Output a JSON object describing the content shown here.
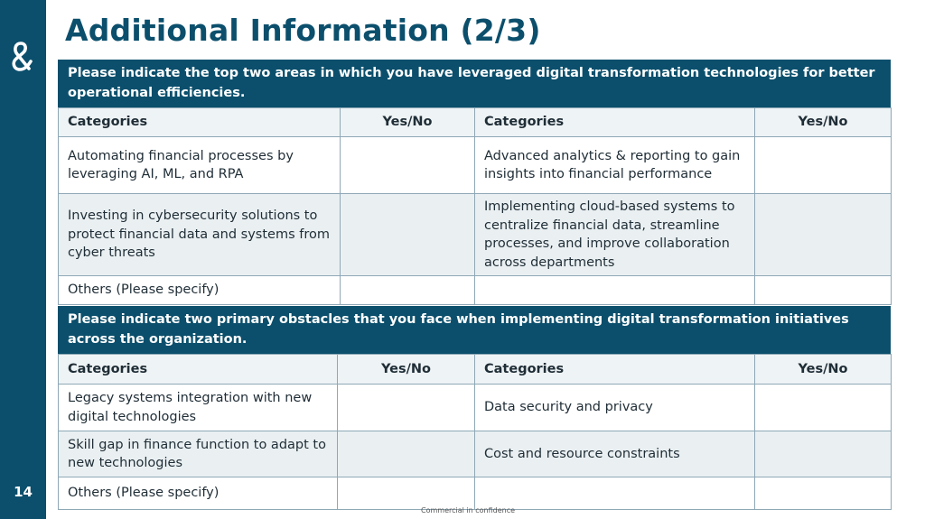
{
  "page": {
    "title": "Additional Information (2/3)",
    "page_number": "14",
    "footer": "Commercial in confidence"
  },
  "section1": {
    "question": "Please indicate the top two areas in which you have leveraged digital transformation technologies for better operational efficiencies.",
    "headers": [
      "Categories",
      "Yes/No",
      "Categories",
      "Yes/No"
    ],
    "rows": [
      [
        "Automating financial processes by leveraging AI, ML, and RPA",
        "",
        "Advanced analytics & reporting  to gain insights into financial performance",
        ""
      ],
      [
        "Investing in cybersecurity solutions to protect financial data and systems from cyber threats",
        "",
        "Implementing cloud-based systems to centralize financial data, streamline processes, and improve collaboration across departments",
        ""
      ],
      [
        "Others (Please specify)",
        "",
        "",
        ""
      ]
    ]
  },
  "section2": {
    "question": "Please indicate two primary obstacles that you face when implementing digital transformation initiatives across the organization.",
    "headers": [
      "Categories",
      "Yes/No",
      "Categories",
      "Yes/No"
    ],
    "rows": [
      [
        "Legacy systems integration with new digital technologies",
        "",
        "Data security and privacy",
        ""
      ],
      [
        "Skill gap in finance function to adapt to new technologies",
        "",
        "Cost and resource constraints",
        ""
      ],
      [
        "Others (Please specify)",
        "",
        "",
        ""
      ]
    ]
  },
  "colors": {
    "brand": "#0b4f6c",
    "row_alt": "#eaf0f2",
    "border": "#8fa8b6"
  }
}
